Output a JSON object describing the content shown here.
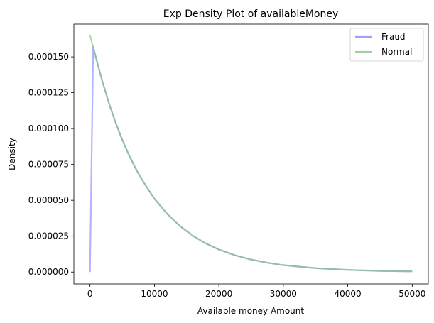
{
  "chart_data": {
    "type": "line",
    "title": "Exp Density Plot of availableMoney",
    "xlabel": "Available money Amount",
    "ylabel": "Density",
    "xlim": [
      -2500,
      52500
    ],
    "ylim": [
      -8.3e-06,
      0.0001728
    ],
    "x_ticks": [
      0,
      10000,
      20000,
      30000,
      40000,
      50000
    ],
    "x_tick_labels": [
      "0",
      "10000",
      "20000",
      "30000",
      "40000",
      "50000"
    ],
    "y_ticks": [
      0,
      2.5e-05,
      5e-05,
      7.5e-05,
      0.0001,
      0.000125,
      0.00015
    ],
    "y_tick_labels": [
      "0.000000",
      "0.000025",
      "0.000050",
      "0.000075",
      "0.000100",
      "0.000125",
      "0.000150"
    ],
    "grid": false,
    "legend_position": "top-right",
    "series": [
      {
        "name": "Fraud",
        "color": "#8080ff",
        "x": [
          0,
          500,
          1000,
          2000,
          3000,
          4000,
          5000,
          6000,
          7000,
          8000,
          10000,
          12000,
          14000,
          16000,
          18000,
          20000,
          22500,
          25000,
          27500,
          30000,
          35000,
          40000,
          45000,
          50000
        ],
        "y": [
          0,
          0.000157,
          0.0001481,
          0.0001316,
          0.0001169,
          0.0001039,
          9.23e-05,
          8.2e-05,
          7.29e-05,
          6.48e-05,
          5.11e-05,
          4.04e-05,
          3.19e-05,
          2.52e-05,
          1.99e-05,
          1.57e-05,
          1.17e-05,
          8.7e-06,
          6.5e-06,
          4.8e-06,
          2.7e-06,
          1.5e-06,
          8e-07,
          5e-07
        ]
      },
      {
        "name": "Normal",
        "color": "#80c080",
        "x": [
          0,
          1000,
          2000,
          3000,
          4000,
          5000,
          6000,
          7000,
          8000,
          10000,
          12000,
          14000,
          16000,
          18000,
          20000,
          22500,
          25000,
          27500,
          30000,
          35000,
          40000,
          45000,
          50000
        ],
        "y": [
          0.000165,
          0.0001481,
          0.0001316,
          0.0001169,
          0.0001039,
          9.23e-05,
          8.2e-05,
          7.29e-05,
          6.48e-05,
          5.11e-05,
          4.04e-05,
          3.19e-05,
          2.52e-05,
          1.99e-05,
          1.57e-05,
          1.17e-05,
          8.7e-06,
          6.5e-06,
          4.8e-06,
          2.7e-06,
          1.5e-06,
          8e-07,
          5e-07
        ]
      }
    ]
  }
}
